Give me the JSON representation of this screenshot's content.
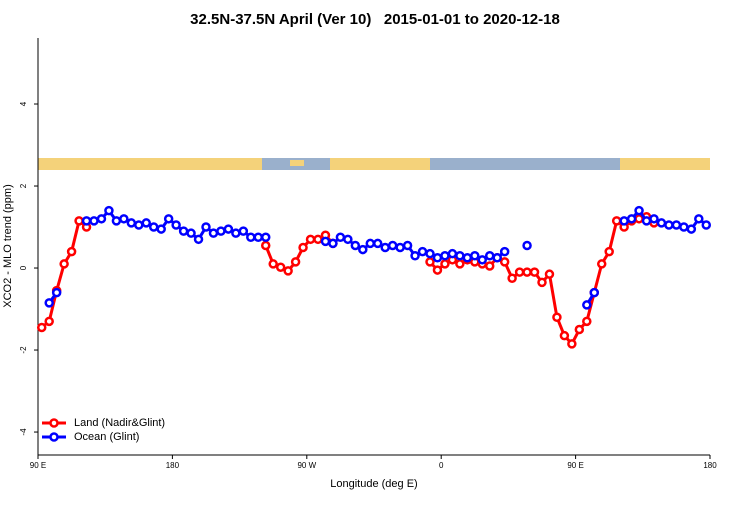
{
  "chart_data": {
    "type": "line",
    "title": "32.5N-37.5N April (Ver 10)   2015-01-01 to 2020-12-18",
    "xlabel": "Longitude (deg E)",
    "ylabel": "XCO2 - MLO trend (ppm)",
    "x": [
      92.5,
      97.5,
      102.5,
      107.5,
      112.5,
      117.5,
      122.5,
      127.5,
      132.5,
      137.5,
      142.5,
      147.5,
      152.5,
      157.5,
      162.5,
      167.5,
      172.5,
      177.5,
      182.5,
      187.5,
      192.5,
      197.5,
      202.5,
      207.5,
      212.5,
      217.5,
      222.5,
      227.5,
      232.5,
      237.5,
      242.5,
      247.5,
      252.5,
      257.5,
      262.5,
      267.5,
      272.5,
      277.5,
      282.5,
      287.5,
      292.5,
      297.5,
      302.5,
      307.5,
      312.5,
      317.5,
      322.5,
      327.5,
      332.5,
      337.5,
      342.5,
      347.5,
      352.5,
      357.5,
      362.5,
      367.5,
      372.5,
      377.5,
      382.5,
      387.5,
      392.5,
      397.5,
      402.5,
      407.5,
      412.5,
      417.5,
      422.5,
      427.5,
      432.5,
      437.5,
      442.5,
      447.5,
      452.5,
      457.5,
      462.5,
      467.5,
      472.5,
      477.5,
      482.5,
      487.5,
      492.5,
      497.5,
      502.5,
      507.5,
      512.5,
      517.5,
      522.5,
      527.5,
      532.5,
      537.5
    ],
    "series": [
      {
        "name": "Land (Nadir&Glint)",
        "color": "#ff0000",
        "values": [
          -1.45,
          -1.3,
          -0.55,
          0.1,
          0.4,
          1.15,
          1.0,
          null,
          null,
          null,
          null,
          null,
          null,
          null,
          null,
          null,
          null,
          null,
          null,
          null,
          null,
          null,
          null,
          null,
          null,
          null,
          null,
          null,
          null,
          null,
          0.55,
          0.1,
          0.02,
          -0.07,
          0.15,
          0.5,
          0.7,
          0.7,
          0.8,
          0.6,
          null,
          null,
          null,
          null,
          null,
          null,
          null,
          null,
          null,
          null,
          null,
          null,
          0.15,
          -0.05,
          0.1,
          0.2,
          0.1,
          0.2,
          0.15,
          0.1,
          0.05,
          0.25,
          0.15,
          -0.25,
          -0.1,
          -0.1,
          -0.1,
          -0.35,
          -0.15,
          -1.2,
          -1.65,
          -1.85,
          -1.5,
          -1.3,
          -0.6,
          0.1,
          0.4,
          1.15,
          1.0,
          1.15,
          1.2,
          1.25,
          1.1,
          null,
          null,
          null,
          null,
          null,
          null,
          null
        ]
      },
      {
        "name": "Ocean (Glint)",
        "color": "#0000ff",
        "values": [
          null,
          -0.85,
          -0.6,
          null,
          null,
          null,
          1.15,
          1.15,
          1.2,
          1.4,
          1.15,
          1.2,
          1.1,
          1.05,
          1.1,
          1.0,
          0.95,
          1.2,
          1.05,
          0.9,
          0.85,
          0.7,
          1.0,
          0.85,
          0.9,
          0.95,
          0.85,
          0.9,
          0.75,
          0.75,
          0.75,
          null,
          null,
          null,
          null,
          null,
          null,
          null,
          0.65,
          0.6,
          0.75,
          0.7,
          0.55,
          0.45,
          0.6,
          0.6,
          0.5,
          0.55,
          0.5,
          0.55,
          0.3,
          0.4,
          0.35,
          0.25,
          0.3,
          0.35,
          0.3,
          0.25,
          0.3,
          0.2,
          0.3,
          0.25,
          0.4,
          null,
          null,
          0.55,
          null,
          null,
          null,
          null,
          null,
          null,
          null,
          -0.9,
          -0.6,
          null,
          null,
          null,
          1.15,
          1.2,
          1.4,
          1.15,
          1.2,
          1.1,
          1.05,
          1.05,
          1.0,
          0.95,
          1.2,
          1.05
        ]
      }
    ],
    "xlim": [
      90,
      540
    ],
    "ylim": [
      -4.56,
      5.61
    ],
    "xticks": [
      {
        "value": 90,
        "label": "90 E"
      },
      180,
      {
        "value": 270,
        "label": "90 W"
      },
      {
        "value": 360,
        "label": "0"
      },
      {
        "value": 450,
        "label": "90 E"
      },
      {
        "value": 540,
        "label": "180"
      }
    ],
    "yticks": [
      -4,
      -2,
      0,
      2,
      4
    ],
    "legend": "bottom-left"
  }
}
